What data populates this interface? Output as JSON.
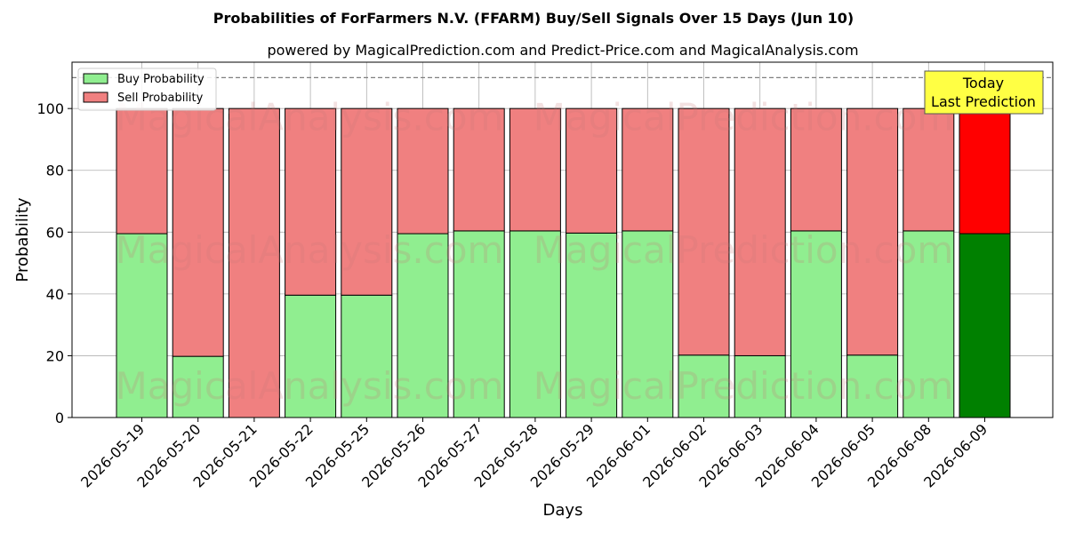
{
  "chart_data": {
    "type": "bar",
    "stacked": true,
    "title": "Probabilities of ForFarmers N.V. (FFARM) Buy/Sell Signals Over 15 Days (Jun 10)",
    "subtitle": "powered by MagicalPrediction.com and Predict-Price.com and MagicalAnalysis.com",
    "xlabel": "Days",
    "ylabel": "Probability",
    "ylim": [
      0,
      115
    ],
    "yticks": [
      0,
      20,
      40,
      60,
      80,
      100
    ],
    "grid": true,
    "legend_position": "top-left",
    "categories": [
      "2026-05-19",
      "2026-05-20",
      "2026-05-21",
      "2026-05-22",
      "2026-05-25",
      "2026-05-26",
      "2026-05-27",
      "2026-05-28",
      "2026-05-29",
      "2026-06-01",
      "2026-06-02",
      "2026-06-03",
      "2026-06-04",
      "2026-06-05",
      "2026-06-08",
      "2026-06-09"
    ],
    "series": [
      {
        "name": "Buy Probability",
        "color": "#90ee90",
        "highlight_color": "#008000",
        "values": [
          59.5,
          19.8,
          0,
          39.6,
          39.6,
          59.5,
          60.4,
          60.4,
          59.7,
          60.4,
          20.2,
          20.0,
          60.4,
          20.2,
          60.4,
          59.5
        ]
      },
      {
        "name": "Sell Probability",
        "color": "#f08080",
        "highlight_color": "#ff0000",
        "values": [
          40.5,
          80.2,
          100,
          60.4,
          60.4,
          40.5,
          39.6,
          39.6,
          40.3,
          39.6,
          79.8,
          80.0,
          39.6,
          79.8,
          39.6,
          40.5
        ]
      }
    ],
    "reference_line": {
      "y": 110,
      "style": "dashed",
      "color": "#808080"
    },
    "annotation": {
      "lines": [
        "Today",
        "Last Prediction"
      ],
      "background": "#ffff44"
    },
    "watermarks": [
      "MagicalAnalysis.com",
      "MagicalPrediction.com"
    ]
  }
}
